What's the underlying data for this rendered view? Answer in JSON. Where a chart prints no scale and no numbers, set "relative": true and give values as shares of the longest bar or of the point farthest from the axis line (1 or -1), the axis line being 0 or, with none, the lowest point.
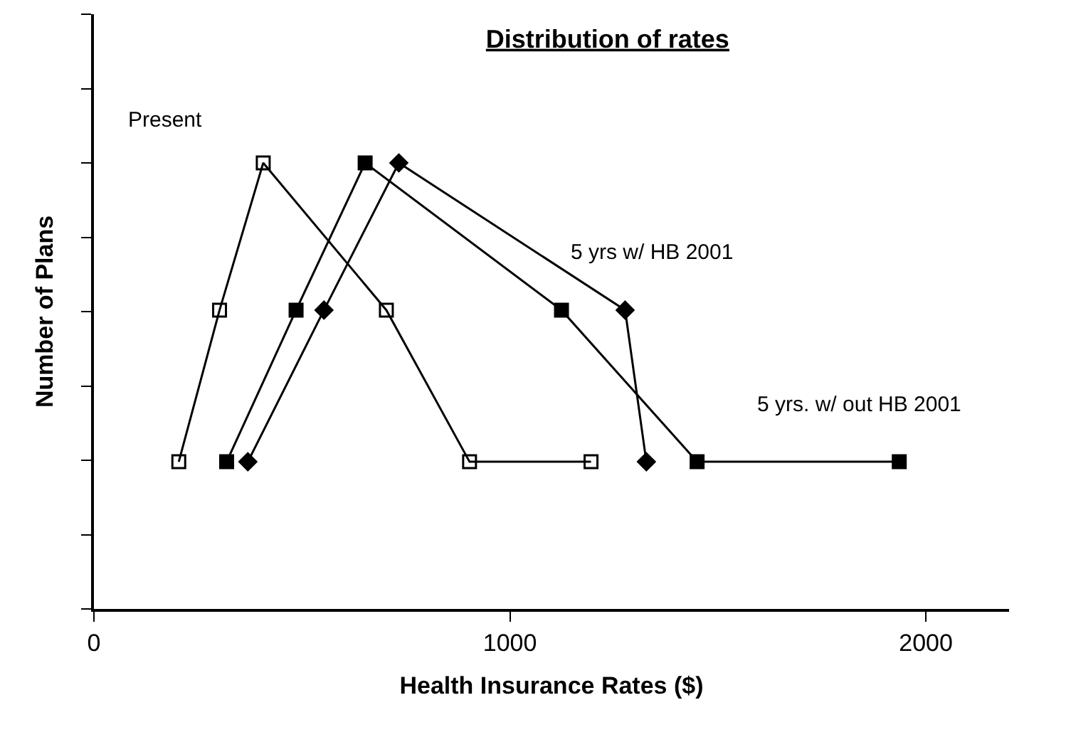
{
  "chart_data": {
    "type": "line",
    "title": "Distribution of rates",
    "xlabel": "Health Insurance Rates ($)",
    "ylabel": "Number of Plans",
    "relative": true,
    "xlim": [
      0,
      2200
    ],
    "xticks": [
      0,
      1000,
      2000
    ],
    "legend": false,
    "line_style": "solid",
    "series": [
      {
        "name": "Present",
        "color": "#000000",
        "marker": "square-open",
        "x": [
          204,
          302,
          407,
          703,
          903,
          1195
        ],
        "values": [
          0.33,
          0.67,
          1,
          0.67,
          0.33,
          0.33
        ]
      },
      {
        "name": "5 yrs w/ HB 2001",
        "color": "#000000",
        "marker": "diamond",
        "x": [
          370,
          553,
          733,
          1277,
          1328
        ],
        "values": [
          0.33,
          0.67,
          1,
          0.67,
          0.33
        ]
      },
      {
        "name": "5 yrs. w/ out HB 2001",
        "color": "#000000",
        "marker": "square",
        "x": [
          319,
          486,
          652,
          1124,
          1450,
          1936
        ],
        "values": [
          0.33,
          0.67,
          1,
          0.67,
          0.33,
          0.33
        ]
      }
    ]
  }
}
